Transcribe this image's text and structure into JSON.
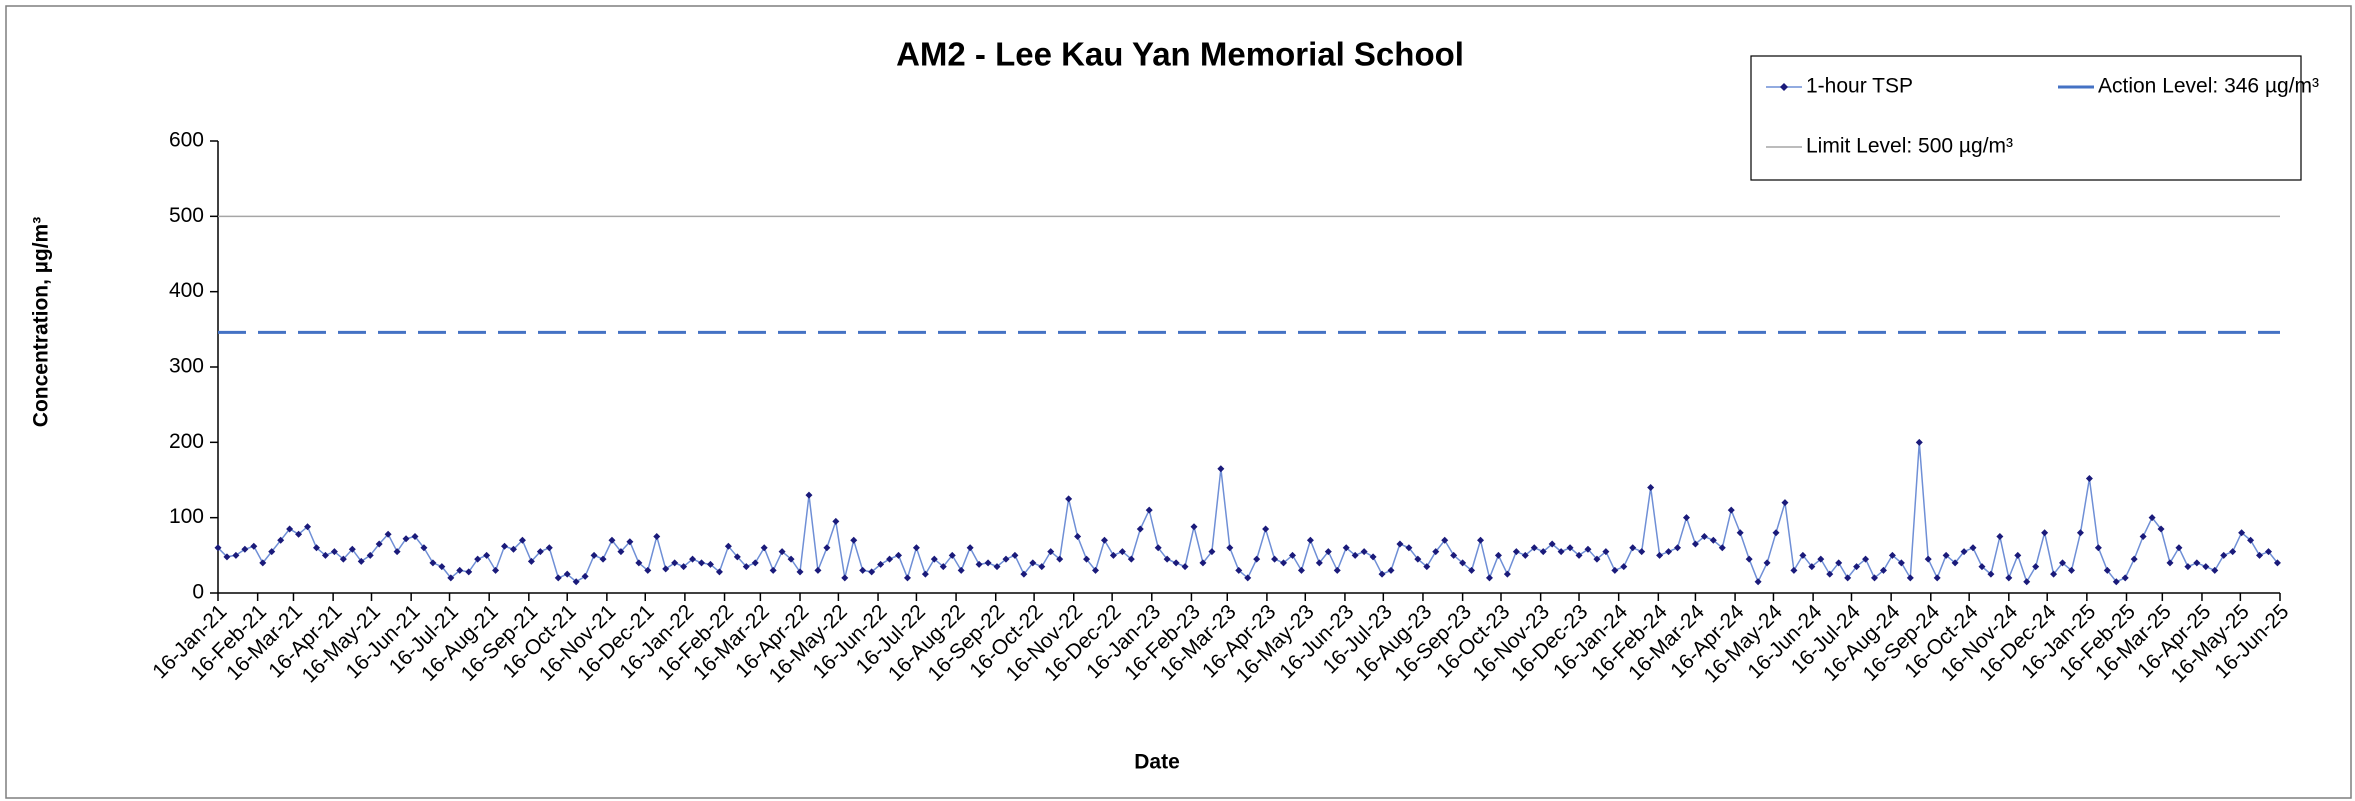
{
  "chart_data": {
    "type": "line",
    "title": "AM2 - Lee Kau Yan Memorial School",
    "x_label": "Date",
    "y_label": "Concentration, µg/m³",
    "xlim": [
      44212,
      45824
    ],
    "xticks": [
      {
        "value": 44212,
        "label": "16-Jan-21"
      },
      {
        "value": 44243,
        "label": "16-Feb-21"
      },
      {
        "value": 44271,
        "label": "16-Mar-21"
      },
      {
        "value": 44302,
        "label": "16-Apr-21"
      },
      {
        "value": 44332,
        "label": "16-May-21"
      },
      {
        "value": 44363,
        "label": "16-Jun-21"
      },
      {
        "value": 44393,
        "label": "16-Jul-21"
      },
      {
        "value": 44424,
        "label": "16-Aug-21"
      },
      {
        "value": 44455,
        "label": "16-Sep-21"
      },
      {
        "value": 44485,
        "label": "16-Oct-21"
      },
      {
        "value": 44516,
        "label": "16-Nov-21"
      },
      {
        "value": 44546,
        "label": "16-Dec-21"
      },
      {
        "value": 44577,
        "label": "16-Jan-22"
      },
      {
        "value": 44608,
        "label": "16-Feb-22"
      },
      {
        "value": 44636,
        "label": "16-Mar-22"
      },
      {
        "value": 44667,
        "label": "16-Apr-22"
      },
      {
        "value": 44697,
        "label": "16-May-22"
      },
      {
        "value": 44728,
        "label": "16-Jun-22"
      },
      {
        "value": 44758,
        "label": "16-Jul-22"
      },
      {
        "value": 44789,
        "label": "16-Aug-22"
      },
      {
        "value": 44820,
        "label": "16-Sep-22"
      },
      {
        "value": 44850,
        "label": "16-Oct-22"
      },
      {
        "value": 44881,
        "label": "16-Nov-22"
      },
      {
        "value": 44911,
        "label": "16-Dec-22"
      },
      {
        "value": 44942,
        "label": "16-Jan-23"
      },
      {
        "value": 44973,
        "label": "16-Feb-23"
      },
      {
        "value": 45001,
        "label": "16-Mar-23"
      },
      {
        "value": 45032,
        "label": "16-Apr-23"
      },
      {
        "value": 45062,
        "label": "16-May-23"
      },
      {
        "value": 45093,
        "label": "16-Jun-23"
      },
      {
        "value": 45123,
        "label": "16-Jul-23"
      },
      {
        "value": 45154,
        "label": "16-Aug-23"
      },
      {
        "value": 45185,
        "label": "16-Sep-23"
      },
      {
        "value": 45215,
        "label": "16-Oct-23"
      },
      {
        "value": 45246,
        "label": "16-Nov-23"
      },
      {
        "value": 45276,
        "label": "16-Dec-23"
      },
      {
        "value": 45307,
        "label": "16-Jan-24"
      },
      {
        "value": 45338,
        "label": "16-Feb-24"
      },
      {
        "value": 45367,
        "label": "16-Mar-24"
      },
      {
        "value": 45398,
        "label": "16-Apr-24"
      },
      {
        "value": 45428,
        "label": "16-May-24"
      },
      {
        "value": 45459,
        "label": "16-Jun-24"
      },
      {
        "value": 45489,
        "label": "16-Jul-24"
      },
      {
        "value": 45520,
        "label": "16-Aug-24"
      },
      {
        "value": 45551,
        "label": "16-Sep-24"
      },
      {
        "value": 45581,
        "label": "16-Oct-24"
      },
      {
        "value": 45612,
        "label": "16-Nov-24"
      },
      {
        "value": 45642,
        "label": "16-Dec-24"
      },
      {
        "value": 45673,
        "label": "16-Jan-25"
      },
      {
        "value": 45704,
        "label": "16-Feb-25"
      },
      {
        "value": 45732,
        "label": "16-Mar-25"
      },
      {
        "value": 45763,
        "label": "16-Apr-25"
      },
      {
        "value": 45793,
        "label": "16-May-25"
      },
      {
        "value": 45824,
        "label": "16-Jun-25"
      }
    ],
    "ylim": [
      0,
      600
    ],
    "yticks": [
      0,
      100,
      200,
      300,
      400,
      500,
      600
    ],
    "grid": false,
    "legend": "top-right",
    "series": [
      {
        "name": "1-hour TSP",
        "color": "#1a1a7a",
        "x": [
          44212,
          44219,
          44226,
          44233,
          44240,
          44247,
          44254,
          44261,
          44268,
          44275,
          44282,
          44289,
          44296,
          44303,
          44310,
          44317,
          44324,
          44331,
          44338,
          44345,
          44352,
          44359,
          44366,
          44373,
          44380,
          44387,
          44394,
          44401,
          44408,
          44415,
          44422,
          44429,
          44436,
          44443,
          44450,
          44457,
          44464,
          44471,
          44478,
          44485,
          44492,
          44499,
          44506,
          44513,
          44520,
          44527,
          44534,
          44541,
          44548,
          44555,
          44562,
          44569,
          44576,
          44583,
          44590,
          44597,
          44604,
          44611,
          44618,
          44625,
          44632,
          44639,
          44646,
          44653,
          44660,
          44667,
          44674,
          44681,
          44688,
          44695,
          44702,
          44709,
          44716,
          44723,
          44730,
          44737,
          44744,
          44751,
          44758,
          44765,
          44772,
          44779,
          44786,
          44793,
          44800,
          44807,
          44814,
          44821,
          44828,
          44835,
          44842,
          44849,
          44856,
          44863,
          44870,
          44877,
          44884,
          44891,
          44898,
          44905,
          44912,
          44919,
          44926,
          44933,
          44940,
          44947,
          44954,
          44961,
          44968,
          44975,
          44982,
          44989,
          44996,
          45003,
          45010,
          45017,
          45024,
          45031,
          45038,
          45045,
          45052,
          45059,
          45066,
          45073,
          45080,
          45087,
          45094,
          45101,
          45108,
          45115,
          45122,
          45129,
          45136,
          45143,
          45150,
          45157,
          45164,
          45171,
          45178,
          45185,
          45192,
          45199,
          45206,
          45213,
          45220,
          45227,
          45234,
          45241,
          45248,
          45255,
          45262,
          45269,
          45276,
          45283,
          45290,
          45297,
          45304,
          45311,
          45318,
          45325,
          45332,
          45339,
          45346,
          45353,
          45360,
          45367,
          45374,
          45381,
          45388,
          45395,
          45402,
          45409,
          45416,
          45423,
          45430,
          45437,
          45444,
          45451,
          45458,
          45465,
          45472,
          45479,
          45486,
          45493,
          45500,
          45507,
          45514,
          45521,
          45528,
          45535,
          45542,
          45549,
          45556,
          45563,
          45570,
          45577,
          45584,
          45591,
          45598,
          45605,
          45612,
          45619,
          45626,
          45633,
          45640,
          45647,
          45654,
          45661,
          45668,
          45675,
          45682,
          45689,
          45696,
          45703,
          45710,
          45717,
          45724,
          45731,
          45738,
          45745,
          45752,
          45759,
          45766,
          45773,
          45780,
          45787,
          45794,
          45801,
          45808,
          45815,
          45822
        ],
        "values": [
          60,
          48,
          50,
          58,
          62,
          40,
          55,
          70,
          85,
          78,
          88,
          60,
          50,
          55,
          45,
          58,
          42,
          50,
          65,
          78,
          55,
          72,
          75,
          60,
          40,
          35,
          20,
          30,
          28,
          45,
          50,
          30,
          62,
          58,
          70,
          42,
          55,
          60,
          20,
          25,
          15,
          22,
          50,
          45,
          70,
          55,
          68,
          40,
          30,
          75,
          32,
          40,
          35,
          45,
          40,
          38,
          28,
          62,
          48,
          35,
          40,
          60,
          30,
          55,
          45,
          28,
          130,
          30,
          60,
          95,
          20,
          70,
          30,
          28,
          38,
          45,
          50,
          20,
          60,
          25,
          45,
          35,
          50,
          30,
          60,
          38,
          40,
          35,
          45,
          50,
          25,
          40,
          35,
          55,
          45,
          125,
          75,
          45,
          30,
          70,
          50,
          55,
          45,
          85,
          110,
          60,
          45,
          40,
          35,
          88,
          40,
          55,
          165,
          60,
          30,
          20,
          45,
          85,
          45,
          40,
          50,
          30,
          70,
          40,
          55,
          30,
          60,
          50,
          55,
          48,
          25,
          30,
          65,
          60,
          45,
          35,
          55,
          70,
          50,
          40,
          30,
          70,
          20,
          50,
          25,
          55,
          50,
          60,
          55,
          65,
          55,
          60,
          50,
          58,
          45,
          55,
          30,
          35,
          60,
          55,
          140,
          50,
          55,
          60,
          100,
          65,
          75,
          70,
          60,
          110,
          80,
          45,
          15,
          40,
          80,
          120,
          30,
          50,
          35,
          45,
          25,
          40,
          20,
          35,
          45,
          20,
          30,
          50,
          40,
          20,
          200,
          45,
          20,
          50,
          40,
          55,
          60,
          35,
          25,
          75,
          20,
          50,
          15,
          35,
          80,
          25,
          40,
          30,
          80,
          152,
          60,
          30,
          15,
          20,
          45,
          75,
          100,
          85,
          40,
          60,
          35,
          40,
          35,
          30,
          50,
          55,
          80,
          70,
          50,
          55,
          40
        ]
      }
    ],
    "reference_lines": [
      {
        "name": "Action Level: 346 µg/m³",
        "value": 346,
        "color": "#4472c4",
        "dashed": true
      },
      {
        "name": "Limit Level: 500 µg/m³",
        "value": 500,
        "color": "#a6a6a6",
        "dashed": false
      }
    ]
  }
}
